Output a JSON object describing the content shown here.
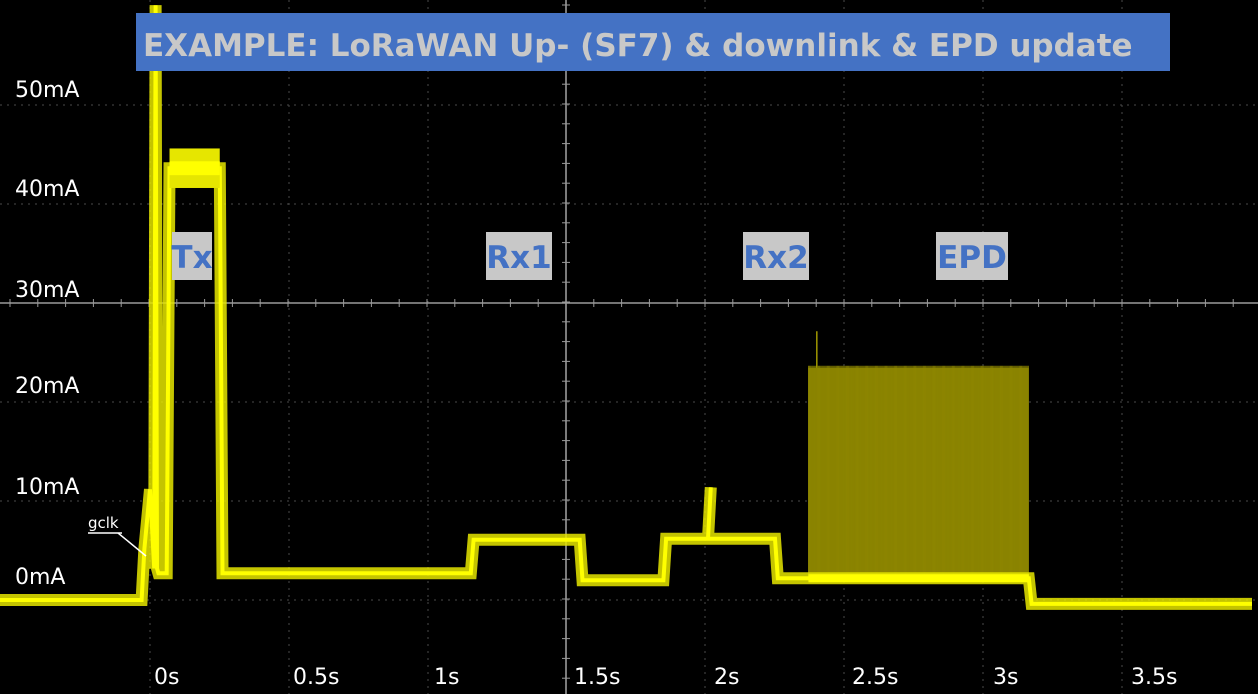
{
  "chart_data": {
    "type": "line",
    "title": "EXAMPLE: LoRaWAN Up- (SF7) & downlink & EPD update",
    "xlabel": "",
    "ylabel": "",
    "x_ticks": [
      "0s",
      "0.5s",
      "1s",
      "1.5s",
      "2s",
      "2.5s",
      "3s",
      "3.5s"
    ],
    "y_ticks": [
      "50mA",
      "40mA",
      "30mA",
      "20mA",
      "10mA",
      "0mA"
    ],
    "xlim": [
      -0.57,
      3.95
    ],
    "ylim": [
      -10,
      60
    ],
    "grid": true,
    "trace_color": "#e6e600",
    "highlight_color": "#ffff00",
    "label_box_color": "#4472c4",
    "phase_text_color": "#4472c4",
    "phase_box_color": "#c8c8c8",
    "series": [
      {
        "x": [
          -0.57,
          -0.03,
          -0.02,
          0.0,
          0.015,
          0.02,
          0.025,
          0.03,
          0.06,
          0.07,
          0.085,
          0.1,
          0.22,
          0.25,
          0.26,
          0.27,
          1.15,
          1.16,
          1.54,
          1.55,
          1.84,
          1.85,
          2.0,
          2.01,
          2.0,
          2.24,
          2.25,
          2.35,
          2.36,
          3.15,
          3.16,
          3.95
        ],
        "y": [
          -0.2,
          -0.2,
          5.0,
          11.0,
          3.0,
          60.0,
          3.0,
          2.5,
          2.5,
          43.5,
          43.5,
          43.5,
          43.5,
          43.5,
          2.5,
          2.5,
          2.5,
          5.9,
          5.9,
          1.8,
          1.8,
          6.0,
          6.0,
          11.2,
          6.0,
          6.0,
          2.0,
          2.0,
          2.0,
          2.0,
          -0.6,
          -0.6
        ]
      }
    ],
    "epd_band": {
      "x_start": 2.36,
      "x_end": 3.15,
      "y_low": 2.0,
      "y_high": 23.3,
      "spike": 27.0
    },
    "phase_labels": [
      {
        "text": "Tx",
        "x": 0.09
      },
      {
        "text": "Rx1",
        "x": 1.41
      },
      {
        "text": "Rx2",
        "x": 2.2
      },
      {
        "text": "EPD",
        "x": 2.8
      }
    ],
    "probe_annotation": "gclk"
  }
}
